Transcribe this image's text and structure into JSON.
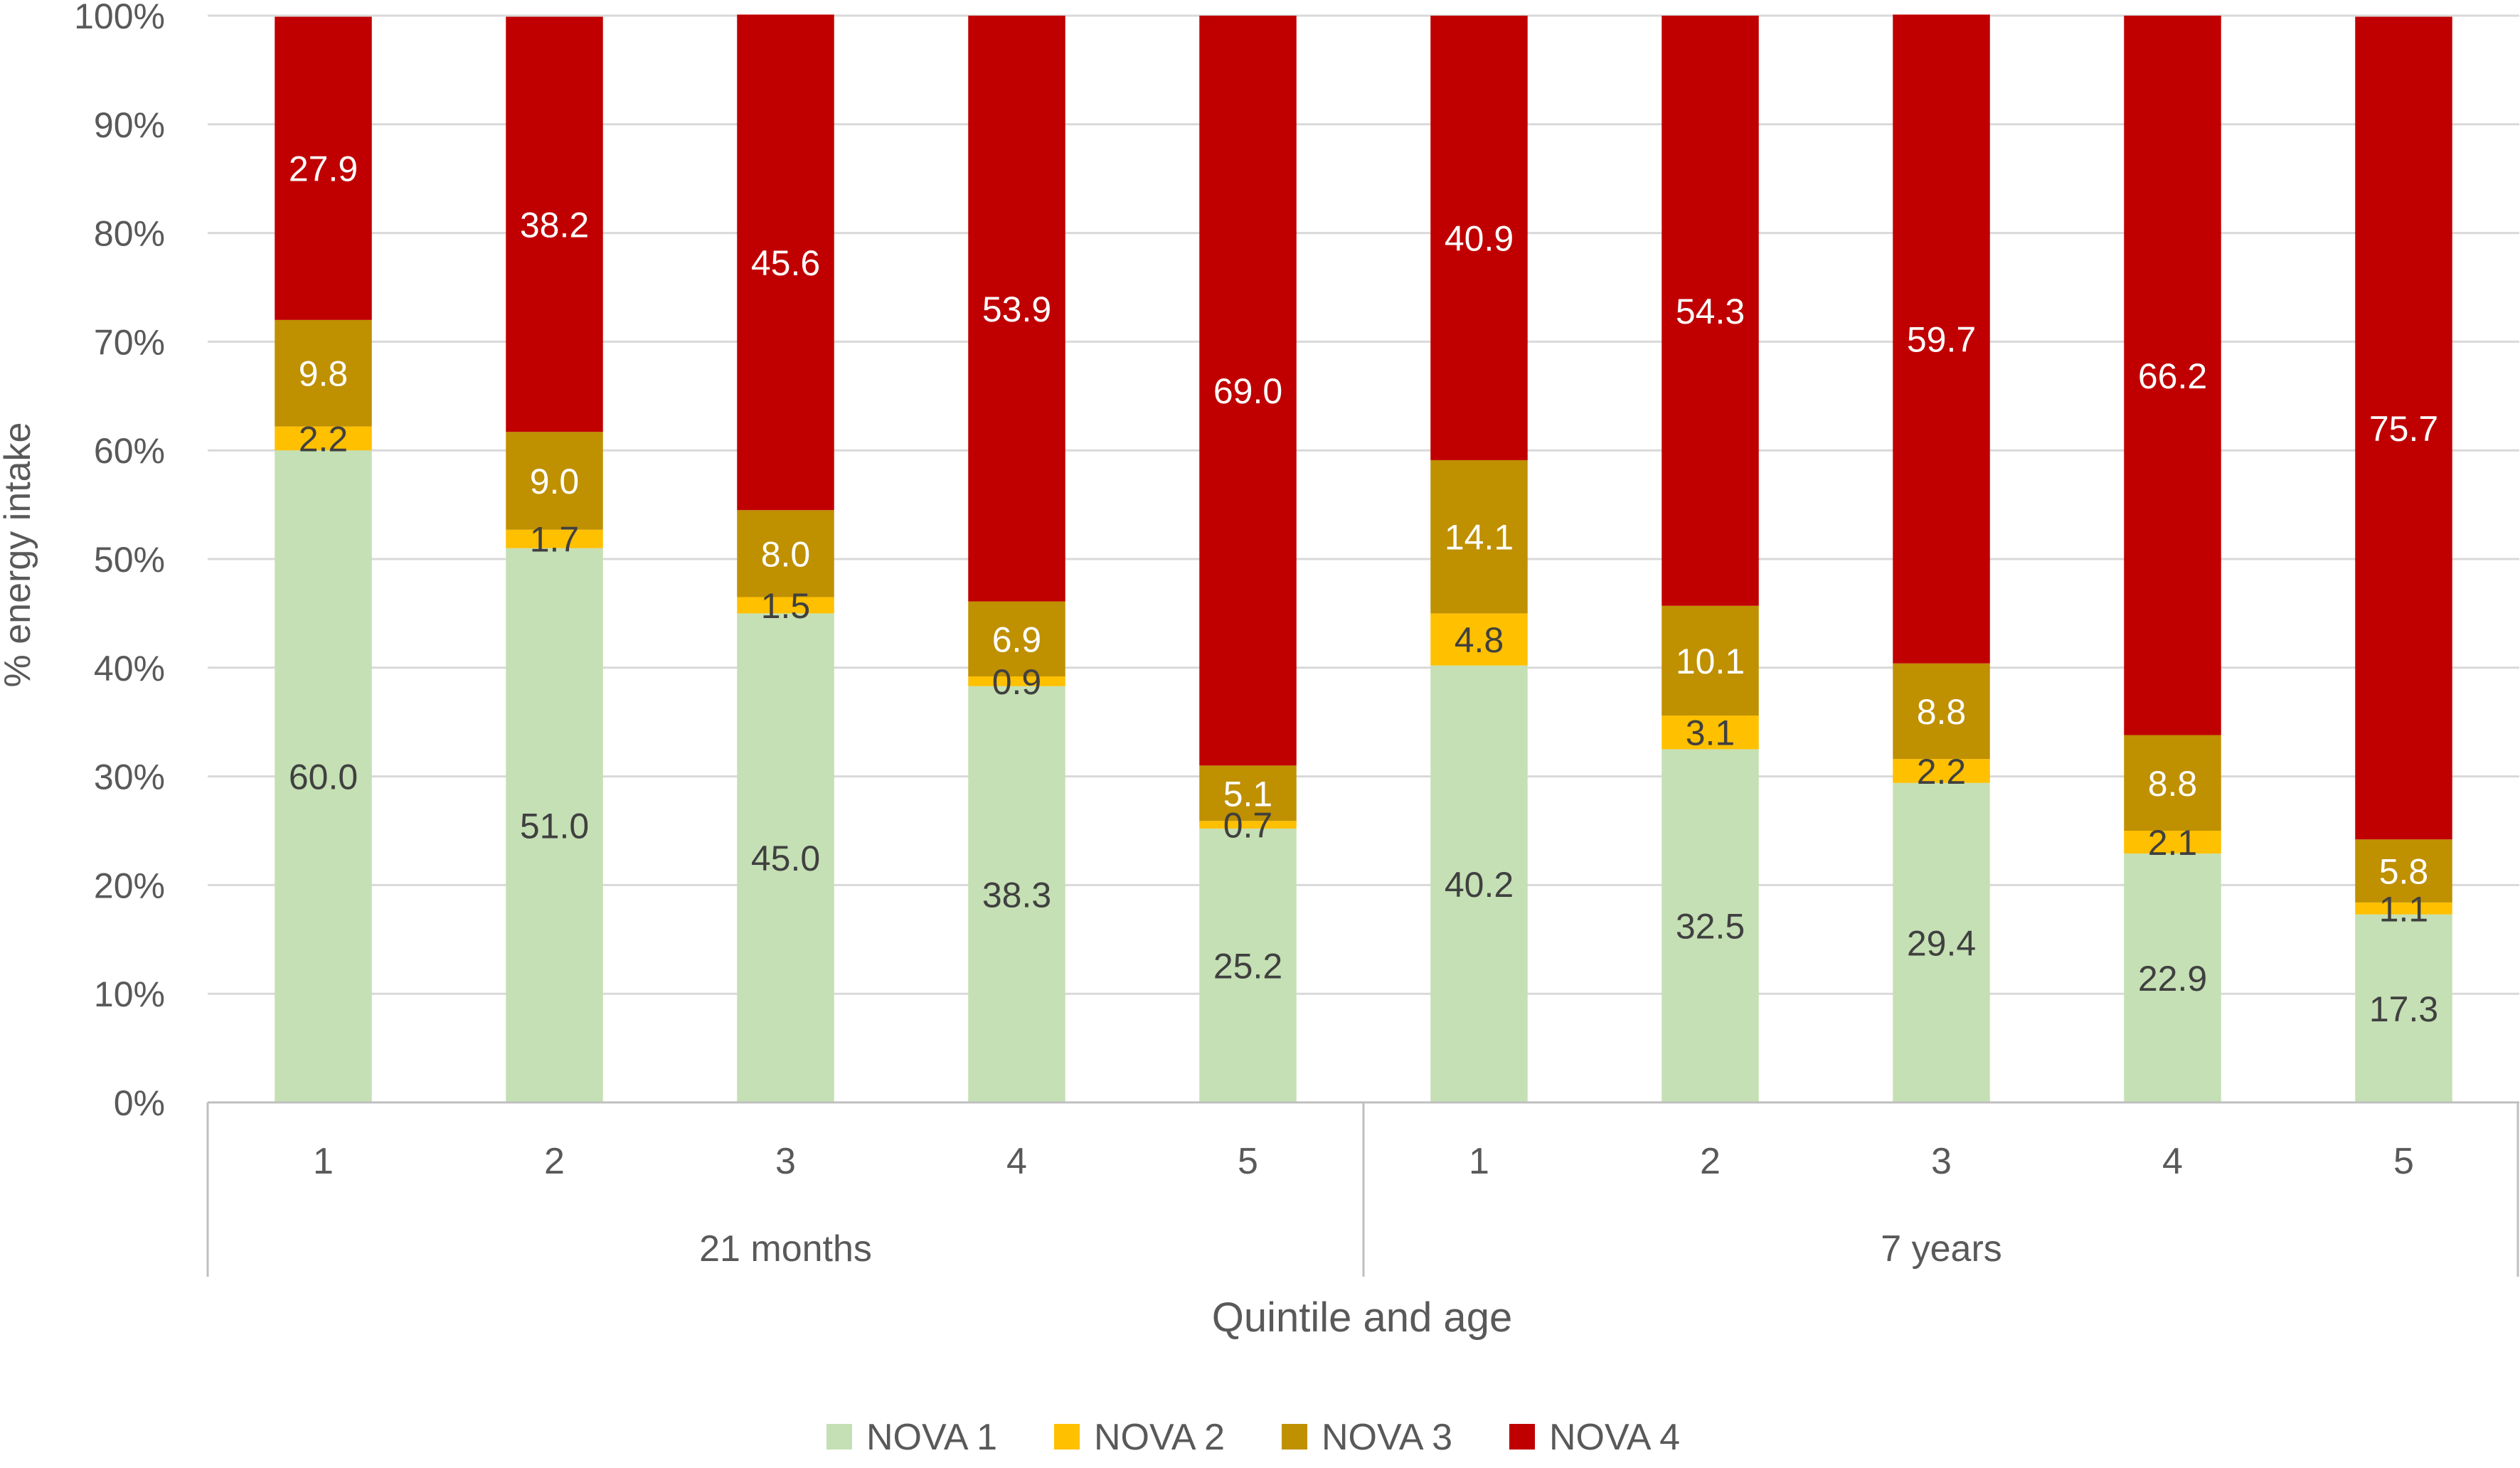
{
  "chart_data": {
    "type": "bar",
    "stacked": true,
    "percent_stacked": true,
    "title": "",
    "xlabel": "Quintile and age",
    "ylabel": "% energy intake",
    "ylim": [
      0,
      100
    ],
    "y_ticks": [
      "0%",
      "10%",
      "20%",
      "30%",
      "40%",
      "50%",
      "60%",
      "70%",
      "80%",
      "90%",
      "100%"
    ],
    "grid": true,
    "legend_position": "bottom",
    "groups": [
      {
        "label": "21 months",
        "categories": [
          "1",
          "2",
          "3",
          "4",
          "5"
        ]
      },
      {
        "label": "7 years",
        "categories": [
          "1",
          "2",
          "3",
          "4",
          "5"
        ]
      }
    ],
    "series": [
      {
        "name": "NOVA 1",
        "color": "#c5e0b4",
        "values": [
          60.0,
          51.0,
          45.0,
          38.3,
          25.2,
          40.2,
          32.5,
          29.4,
          22.9,
          17.3
        ],
        "labels": [
          "60.0",
          "51.0",
          "45.0",
          "38.3",
          "25.2",
          "40.2",
          "32.5",
          "29.4",
          "22.9",
          "17.3"
        ],
        "label_color": "#404040"
      },
      {
        "name": "NOVA 2",
        "color": "#ffc000",
        "values": [
          2.2,
          1.7,
          1.5,
          0.9,
          0.7,
          4.8,
          3.1,
          2.2,
          2.1,
          1.1
        ],
        "labels": [
          "2.2",
          "1.7",
          "1.5",
          "0.9",
          "0.7",
          "4.8",
          "3.1",
          "2.2",
          "2.1",
          "1.1"
        ],
        "label_color": "#404040"
      },
      {
        "name": "NOVA 3",
        "color": "#bf9000",
        "values": [
          9.8,
          9.0,
          8.0,
          6.9,
          5.1,
          14.1,
          10.1,
          8.8,
          8.8,
          5.8
        ],
        "labels": [
          "9.8",
          "9.0",
          "8.0",
          "6.9",
          "5.1",
          "14.1",
          "10.1",
          "8.8",
          "8.8",
          "5.8"
        ],
        "label_color": "#ffffff"
      },
      {
        "name": "NOVA 4",
        "color": "#c00000",
        "values": [
          27.9,
          38.2,
          45.6,
          53.9,
          69.0,
          40.9,
          54.3,
          59.7,
          66.2,
          75.7
        ],
        "labels": [
          "27.9",
          "38.2",
          "45.6",
          "53.9",
          "69.0",
          "40.9",
          "54.3",
          "59.7",
          "66.2",
          "75.7"
        ],
        "label_color": "#ffffff"
      }
    ]
  }
}
